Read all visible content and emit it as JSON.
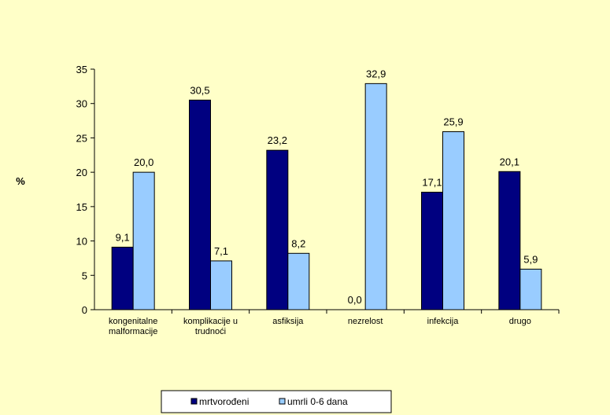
{
  "chart_data": {
    "type": "bar",
    "categories": [
      [
        "kongenitalne",
        "malformacije"
      ],
      [
        "komplikacije u",
        "trudnoći"
      ],
      [
        "asfiksija"
      ],
      [
        "nezrelost"
      ],
      [
        "infekcija"
      ],
      [
        "drugo"
      ]
    ],
    "series": [
      {
        "name": "mrtvorođeni",
        "color": "#000080",
        "values": [
          9.1,
          30.5,
          23.2,
          0.0,
          17.1,
          20.1
        ],
        "labels": [
          "9,1",
          "30,5",
          "23,2",
          "0,0",
          "17,1",
          "20,1"
        ]
      },
      {
        "name": "umrli 0-6 dana",
        "color": "#99ccff",
        "values": [
          20.0,
          7.1,
          8.2,
          32.9,
          25.9,
          5.9
        ],
        "labels": [
          "20,0",
          "7,1",
          "8,2",
          "32,9",
          "25,9",
          "5,9"
        ]
      }
    ],
    "title": "",
    "xlabel": "",
    "ylabel": "%",
    "ylim": [
      0,
      35
    ],
    "yticks": [
      0,
      5,
      10,
      15,
      20,
      25,
      30,
      35
    ],
    "grid": false,
    "legend_position": "bottom"
  }
}
